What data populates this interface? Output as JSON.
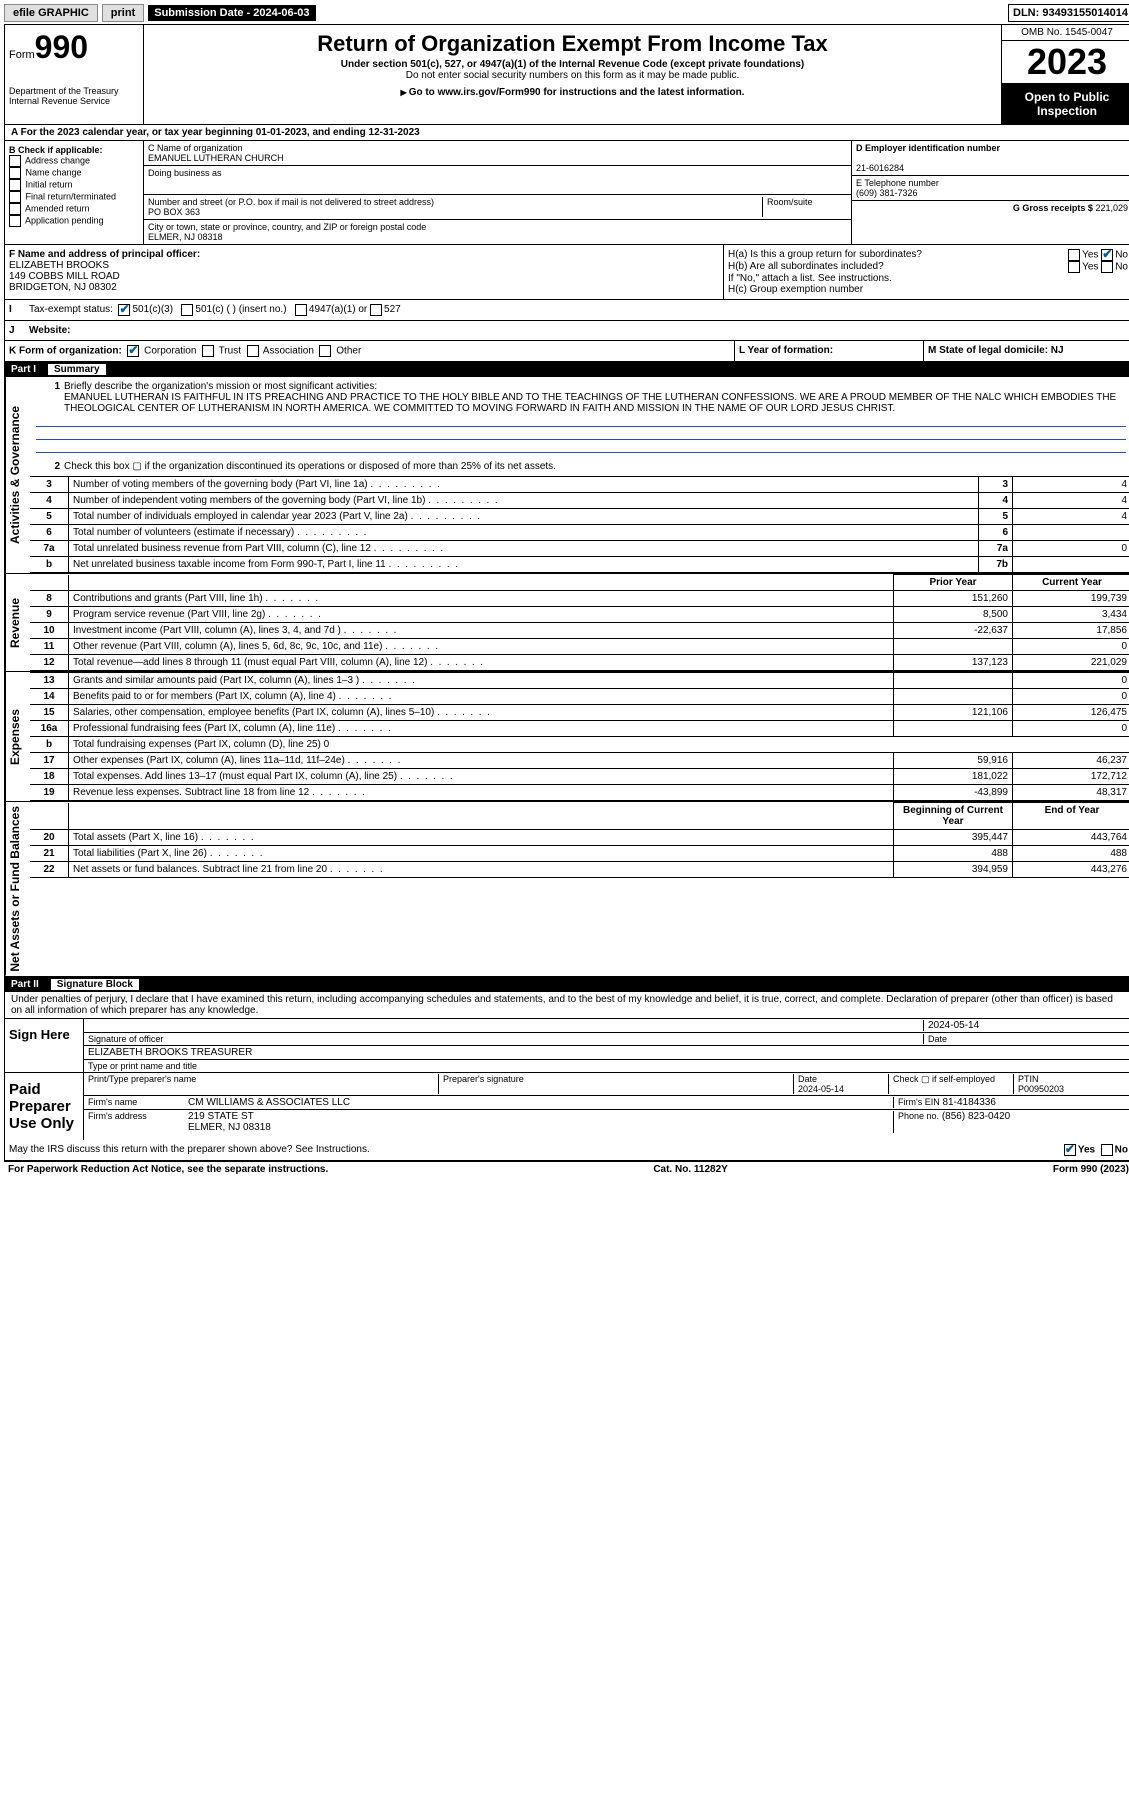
{
  "topbar": {
    "efile": "efile GRAPHIC",
    "print": "print",
    "submission_label": "Submission Date - 2024-06-03",
    "dln": "DLN: 93493155014014"
  },
  "header": {
    "form_label": "Form",
    "form_number": "990",
    "dept": "Department of the Treasury",
    "irs": "Internal Revenue Service",
    "title": "Return of Organization Exempt From Income Tax",
    "subtitle": "Under section 501(c), 527, or 4947(a)(1) of the Internal Revenue Code (except private foundations)",
    "ssn_note": "Do not enter social security numbers on this form as it may be made public.",
    "goto": "Go to www.irs.gov/Form990 for instructions and the latest information.",
    "omb": "OMB No. 1545-0047",
    "year": "2023",
    "open": "Open to Public Inspection"
  },
  "period": {
    "text_a": "For the 2023 calendar year, or tax year beginning 01-01-2023",
    "text_b": ", and ending 12-31-2023"
  },
  "box_b": {
    "label": "B Check if applicable:",
    "items": [
      "Address change",
      "Name change",
      "Initial return",
      "Final return/terminated",
      "Amended return",
      "Application pending"
    ]
  },
  "org": {
    "c_label": "C Name of organization",
    "name": "EMANUEL LUTHERAN CHURCH",
    "dba_label": "Doing business as",
    "addr_label": "Number and street (or P.O. box if mail is not delivered to street address)",
    "room_label": "Room/suite",
    "addr": "PO BOX 363",
    "city_label": "City or town, state or province, country, and ZIP or foreign postal code",
    "city": "ELMER, NJ  08318"
  },
  "right": {
    "d_label": "D Employer identification number",
    "ein": "21-6016284",
    "e_label": "E Telephone number",
    "phone": "(609) 381-7326",
    "g_label": "G Gross receipts $",
    "gross": "221,029"
  },
  "officer": {
    "f_label": "F Name and address of principal officer:",
    "name": "ELIZABETH BROOKS",
    "addr1": "149 COBBS MILL ROAD",
    "addr2": "BRIDGETON, NJ  08302"
  },
  "h": {
    "a": "H(a)  Is this a group return for subordinates?",
    "b": "H(b)  Are all subordinates included?",
    "b_note": "If \"No,\" attach a list. See instructions.",
    "c": "H(c)  Group exemption number",
    "yes": "Yes",
    "no": "No"
  },
  "i": {
    "label": "Tax-exempt status:",
    "opt1": "501(c)(3)",
    "opt2": "501(c) (   ) (insert no.)",
    "opt3": "4947(a)(1) or",
    "opt4": "527"
  },
  "j": {
    "label": "Website:",
    "arrow": "▶"
  },
  "k": {
    "label": "K Form of organization:",
    "opts": [
      "Corporation",
      "Trust",
      "Association",
      "Other"
    ]
  },
  "l": {
    "label": "L Year of formation:"
  },
  "m": {
    "label": "M State of legal domicile: NJ"
  },
  "part1": {
    "label": "Part I",
    "title": "Summary",
    "q1": "Briefly describe the organization's mission or most significant activities:",
    "mission": "EMANUEL LUTHERAN IS FAITHFUL IN ITS PREACHING AND PRACTICE TO THE HOLY BIBLE AND TO THE TEACHINGS OF THE LUTHERAN CONFESSIONS. WE ARE A PROUD MEMBER OF THE NALC WHICH EMBODIES THE THEOLOGICAL CENTER OF LUTHERANISM IN NORTH AMERICA. WE COMMITTED TO MOVING FORWARD IN FAITH AND MISSION IN THE NAME OF OUR LORD JESUS CHRIST.",
    "q2": "Check this box ▢ if the organization discontinued its operations or disposed of more than 25% of its net assets.",
    "rows": [
      {
        "n": "3",
        "label": "Number of voting members of the governing body (Part VI, line 1a)",
        "ln": "3",
        "v": "4"
      },
      {
        "n": "4",
        "label": "Number of independent voting members of the governing body (Part VI, line 1b)",
        "ln": "4",
        "v": "4"
      },
      {
        "n": "5",
        "label": "Total number of individuals employed in calendar year 2023 (Part V, line 2a)",
        "ln": "5",
        "v": "4"
      },
      {
        "n": "6",
        "label": "Total number of volunteers (estimate if necessary)",
        "ln": "6",
        "v": ""
      },
      {
        "n": "7a",
        "label": "Total unrelated business revenue from Part VIII, column (C), line 12",
        "ln": "7a",
        "v": "0"
      },
      {
        "n": "b",
        "label": "Net unrelated business taxable income from Form 990-T, Part I, line 11",
        "ln": "7b",
        "v": ""
      }
    ],
    "prior": "Prior Year",
    "current": "Current Year",
    "rev": [
      {
        "n": "8",
        "label": "Contributions and grants (Part VIII, line 1h)",
        "p": "151,260",
        "c": "199,739"
      },
      {
        "n": "9",
        "label": "Program service revenue (Part VIII, line 2g)",
        "p": "8,500",
        "c": "3,434"
      },
      {
        "n": "10",
        "label": "Investment income (Part VIII, column (A), lines 3, 4, and 7d )",
        "p": "-22,637",
        "c": "17,856"
      },
      {
        "n": "11",
        "label": "Other revenue (Part VIII, column (A), lines 5, 6d, 8c, 9c, 10c, and 11e)",
        "p": "",
        "c": "0"
      },
      {
        "n": "12",
        "label": "Total revenue—add lines 8 through 11 (must equal Part VIII, column (A), line 12)",
        "p": "137,123",
        "c": "221,029"
      }
    ],
    "exp": [
      {
        "n": "13",
        "label": "Grants and similar amounts paid (Part IX, column (A), lines 1–3 )",
        "p": "",
        "c": "0"
      },
      {
        "n": "14",
        "label": "Benefits paid to or for members (Part IX, column (A), line 4)",
        "p": "",
        "c": "0"
      },
      {
        "n": "15",
        "label": "Salaries, other compensation, employee benefits (Part IX, column (A), lines 5–10)",
        "p": "121,106",
        "c": "126,475"
      },
      {
        "n": "16a",
        "label": "Professional fundraising fees (Part IX, column (A), line 11e)",
        "p": "",
        "c": "0"
      },
      {
        "n": "b",
        "label": "Total fundraising expenses (Part IX, column (D), line 25) 0",
        "p": null,
        "c": null
      },
      {
        "n": "17",
        "label": "Other expenses (Part IX, column (A), lines 11a–11d, 11f–24e)",
        "p": "59,916",
        "c": "46,237"
      },
      {
        "n": "18",
        "label": "Total expenses. Add lines 13–17 (must equal Part IX, column (A), line 25)",
        "p": "181,022",
        "c": "172,712"
      },
      {
        "n": "19",
        "label": "Revenue less expenses. Subtract line 18 from line 12",
        "p": "-43,899",
        "c": "48,317"
      }
    ],
    "boy": "Beginning of Current Year",
    "eoy": "End of Year",
    "net": [
      {
        "n": "20",
        "label": "Total assets (Part X, line 16)",
        "p": "395,447",
        "c": "443,764"
      },
      {
        "n": "21",
        "label": "Total liabilities (Part X, line 26)",
        "p": "488",
        "c": "488"
      },
      {
        "n": "22",
        "label": "Net assets or fund balances. Subtract line 21 from line 20",
        "p": "394,959",
        "c": "443,276"
      }
    ]
  },
  "sidebars": {
    "gov": "Activities & Governance",
    "rev": "Revenue",
    "exp": "Expenses",
    "net": "Net Assets or Fund Balances"
  },
  "part2": {
    "label": "Part II",
    "title": "Signature Block",
    "perjury": "Under penalties of perjury, I declare that I have examined this return, including accompanying schedules and statements, and to the best of my knowledge and belief, it is true, correct, and complete. Declaration of preparer (other than officer) is based on all information of which preparer has any knowledge.",
    "sign_here": "Sign Here",
    "sig_officer": "Signature of officer",
    "date": "Date",
    "date_val": "2024-05-14",
    "officer_name": "ELIZABETH BROOKS TREASURER",
    "type_name": "Type or print name and title",
    "paid": "Paid Preparer Use Only",
    "prep_name_label": "Print/Type preparer's name",
    "prep_sig_label": "Preparer's signature",
    "prep_date": "2024-05-14",
    "check_self": "Check ▢ if self-employed",
    "ptin_label": "PTIN",
    "ptin": "P00950203",
    "firm_name_label": "Firm's name",
    "firm_name": "CM WILLIAMS & ASSOCIATES LLC",
    "firm_ein_label": "Firm's EIN",
    "firm_ein": "81-4184336",
    "firm_addr_label": "Firm's address",
    "firm_addr1": "219 STATE ST",
    "firm_addr2": "ELMER, NJ  08318",
    "phone_label": "Phone no.",
    "phone": "(856) 823-0420",
    "discuss": "May the IRS discuss this return with the preparer shown above? See Instructions."
  },
  "footer": {
    "pra": "For Paperwork Reduction Act Notice, see the separate instructions.",
    "cat": "Cat. No. 11282Y",
    "form": "Form 990 (2023)"
  }
}
